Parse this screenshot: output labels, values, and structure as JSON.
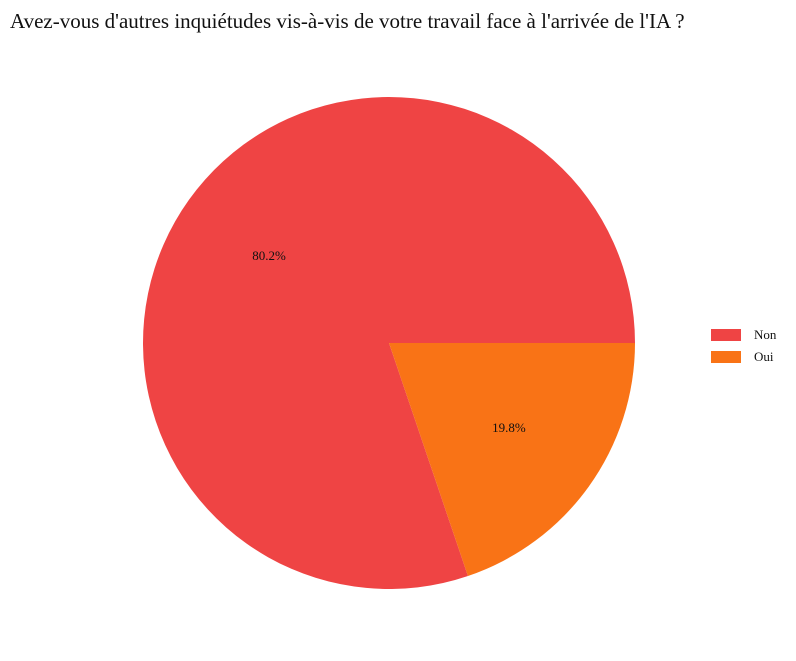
{
  "chart_data": {
    "type": "pie",
    "title": "Avez-vous d'autres inquiétudes vis-à-vis de votre travail face à l'arrivée de l'IA ?",
    "slices": [
      {
        "label": "Non",
        "value": 80.2,
        "display": "80.2%",
        "color": "#ef4444"
      },
      {
        "label": "Oui",
        "value": 19.8,
        "display": "19.8%",
        "color": "#f97316"
      }
    ],
    "legend_position": "right",
    "start_angle_deg": 0,
    "direction": "counterclockwise"
  }
}
